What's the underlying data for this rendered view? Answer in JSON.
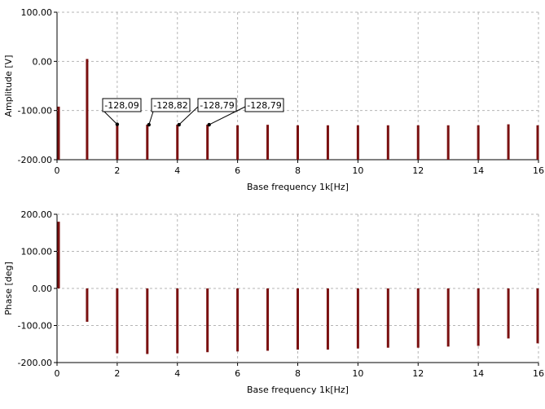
{
  "chart_data": [
    {
      "type": "bar",
      "xlabel": "Base frequency 1k[Hz]",
      "ylabel": "Amplitude [V]",
      "xlim": [
        0,
        16
      ],
      "ylim": [
        -200,
        100
      ],
      "xticks": [
        "0",
        "2",
        "4",
        "6",
        "8",
        "10",
        "12",
        "14",
        "16"
      ],
      "yticks": [
        "100.00",
        "0.00",
        "-100.00",
        "-200.00"
      ],
      "grid": true,
      "bar_color": "#7a1010",
      "x": [
        0,
        1,
        2,
        3,
        4,
        5,
        6,
        7,
        8,
        9,
        10,
        11,
        12,
        13,
        14,
        15,
        16
      ],
      "values": [
        -92,
        5,
        -128.09,
        -128.82,
        -128.79,
        -128.79,
        -130,
        -129,
        -130,
        -130,
        -130,
        -130,
        -130,
        -130,
        -130,
        -128,
        -130
      ],
      "annotations": [
        {
          "text": "-128,09",
          "x": 2,
          "y": -128.09
        },
        {
          "text": "-128,82",
          "x": 3,
          "y": -128.82
        },
        {
          "text": "-128,79",
          "x": 4,
          "y": -128.79
        },
        {
          "text": "-128,79",
          "x": 5,
          "y": -128.79
        }
      ]
    },
    {
      "type": "bar",
      "xlabel": "Base frequency 1k[Hz]",
      "ylabel": "Phase [deg]",
      "xlim": [
        0,
        16
      ],
      "ylim": [
        -200,
        200
      ],
      "xticks": [
        "0",
        "2",
        "4",
        "6",
        "8",
        "10",
        "12",
        "14",
        "16"
      ],
      "yticks": [
        "200.00",
        "100.00",
        "0.00",
        "-100.00",
        "-200.00"
      ],
      "grid": true,
      "bar_color": "#7a1010",
      "x": [
        0,
        1,
        2,
        3,
        4,
        5,
        6,
        7,
        8,
        9,
        10,
        11,
        12,
        13,
        14,
        15,
        16
      ],
      "values": [
        180,
        -90,
        -175,
        -177,
        -175,
        -172,
        -170,
        -168,
        -165,
        -165,
        -162,
        -160,
        -160,
        -157,
        -155,
        -135,
        -148
      ]
    }
  ]
}
